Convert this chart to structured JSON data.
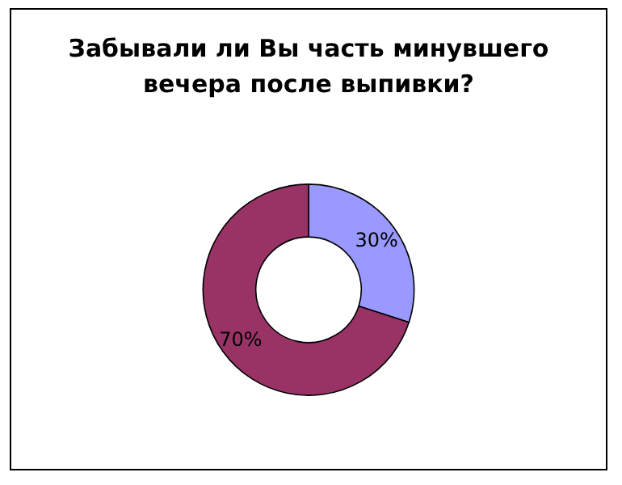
{
  "chart_data": {
    "type": "donut",
    "title": "Забывали ли Вы часть минувшего\nвечера после выпивки?",
    "categories": [
      null,
      null
    ],
    "values": [
      30,
      70
    ],
    "colors": [
      "#9999ff",
      "#993366"
    ],
    "value_labels": [
      "30%",
      "70%"
    ]
  }
}
